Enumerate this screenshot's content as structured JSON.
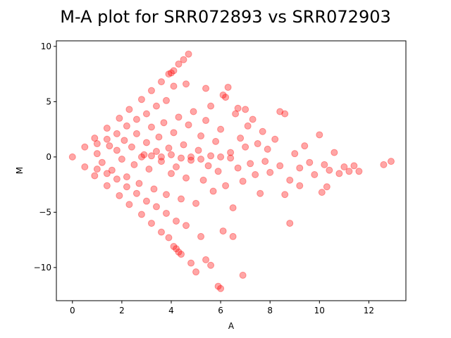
{
  "chart_data": {
    "type": "scatter",
    "title": "M-A plot for SRR072893 vs SRR072903",
    "xlabel": "A",
    "ylabel": "M",
    "xlim": [
      -0.65,
      13.5
    ],
    "ylim": [
      -13.0,
      10.5
    ],
    "xticks": [
      0,
      2,
      4,
      6,
      8,
      10,
      12
    ],
    "yticks": [
      -10,
      -5,
      0,
      5,
      10
    ],
    "grid": false,
    "legend": "none",
    "marker_color": "#ff0000",
    "marker_alpha": 0.35,
    "description_note": "",
    "points": [
      [
        0.0,
        0.0
      ],
      [
        0.5,
        0.9
      ],
      [
        0.9,
        1.7
      ],
      [
        1.4,
        2.6
      ],
      [
        1.9,
        3.5
      ],
      [
        2.3,
        4.3
      ],
      [
        2.8,
        5.2
      ],
      [
        3.2,
        6.0
      ],
      [
        3.6,
        6.8
      ],
      [
        3.9,
        7.5
      ],
      [
        4.1,
        7.8
      ],
      [
        0.5,
        -0.9
      ],
      [
        0.9,
        -1.7
      ],
      [
        1.4,
        -2.6
      ],
      [
        1.9,
        -3.5
      ],
      [
        2.3,
        -4.3
      ],
      [
        2.8,
        -5.2
      ],
      [
        3.2,
        -6.0
      ],
      [
        3.6,
        -6.8
      ],
      [
        3.9,
        -7.3
      ],
      [
        4.1,
        -8.1
      ],
      [
        4.3,
        -8.6
      ],
      [
        4.5,
        8.8
      ],
      [
        4.7,
        9.3
      ],
      [
        4.3,
        8.4
      ],
      [
        4.0,
        7.6
      ],
      [
        4.2,
        -8.3
      ],
      [
        4.4,
        -8.8
      ],
      [
        1.0,
        0.3
      ],
      [
        1.2,
        -0.5
      ],
      [
        1.5,
        1.0
      ],
      [
        1.6,
        -1.2
      ],
      [
        1.8,
        0.6
      ],
      [
        2.0,
        -0.2
      ],
      [
        2.1,
        1.5
      ],
      [
        2.2,
        -1.8
      ],
      [
        2.4,
        0.9
      ],
      [
        2.5,
        -0.7
      ],
      [
        2.6,
        2.1
      ],
      [
        2.7,
        -2.4
      ],
      [
        2.9,
        0.2
      ],
      [
        3.0,
        1.3
      ],
      [
        3.1,
        -1.1
      ],
      [
        3.2,
        2.7
      ],
      [
        3.3,
        -2.9
      ],
      [
        3.4,
        0.5
      ],
      [
        3.5,
        1.8
      ],
      [
        3.6,
        -0.4
      ],
      [
        3.7,
        3.1
      ],
      [
        3.8,
        -3.4
      ],
      [
        3.9,
        0.8
      ],
      [
        4.0,
        -1.5
      ],
      [
        4.1,
        2.2
      ],
      [
        4.2,
        -0.9
      ],
      [
        4.3,
        3.6
      ],
      [
        4.4,
        -3.8
      ],
      [
        4.5,
        1.1
      ],
      [
        4.6,
        -1.9
      ],
      [
        4.7,
        2.9
      ],
      [
        4.8,
        -0.3
      ],
      [
        4.9,
        4.1
      ],
      [
        5.0,
        -4.2
      ],
      [
        5.1,
        0.6
      ],
      [
        5.2,
        1.9
      ],
      [
        5.3,
        -2.1
      ],
      [
        5.4,
        3.3
      ],
      [
        5.5,
        -0.8
      ],
      [
        5.6,
        4.6
      ],
      [
        5.7,
        -3.1
      ],
      [
        5.8,
        1.4
      ],
      [
        5.9,
        -1.3
      ],
      [
        6.0,
        2.5
      ],
      [
        6.1,
        5.6
      ],
      [
        6.2,
        -2.6
      ],
      [
        6.3,
        6.3
      ],
      [
        6.4,
        0.4
      ],
      [
        6.5,
        -4.6
      ],
      [
        6.6,
        3.9
      ],
      [
        6.7,
        -1.0
      ],
      [
        6.8,
        1.7
      ],
      [
        6.9,
        -2.2
      ],
      [
        7.0,
        0.9
      ],
      [
        7.1,
        2.8
      ],
      [
        7.2,
        -0.6
      ],
      [
        7.3,
        3.4
      ],
      [
        7.4,
        -1.6
      ],
      [
        7.5,
        1.2
      ],
      [
        7.6,
        -3.3
      ],
      [
        7.7,
        2.3
      ],
      [
        7.8,
        -0.4
      ],
      [
        7.9,
        0.7
      ],
      [
        8.0,
        -1.4
      ],
      [
        8.2,
        1.6
      ],
      [
        8.4,
        -0.8
      ],
      [
        8.6,
        3.9
      ],
      [
        8.8,
        -2.1
      ],
      [
        9.0,
        0.3
      ],
      [
        9.2,
        -1.0
      ],
      [
        9.4,
        1.0
      ],
      [
        9.6,
        -0.5
      ],
      [
        9.8,
        -1.6
      ],
      [
        10.0,
        2.0
      ],
      [
        10.2,
        -0.7
      ],
      [
        10.4,
        -1.2
      ],
      [
        10.6,
        0.4
      ],
      [
        10.8,
        -1.5
      ],
      [
        11.0,
        -0.9
      ],
      [
        11.2,
        -1.3
      ],
      [
        11.4,
        -0.8
      ],
      [
        11.6,
        -1.3
      ],
      [
        12.6,
        -0.7
      ],
      [
        12.9,
        -0.4
      ],
      [
        5.2,
        -7.2
      ],
      [
        5.4,
        -9.3
      ],
      [
        5.6,
        -9.8
      ],
      [
        5.9,
        -11.7
      ],
      [
        6.0,
        -11.9
      ],
      [
        6.1,
        -6.7
      ],
      [
        6.5,
        -7.2
      ],
      [
        6.9,
        -10.7
      ],
      [
        4.8,
        -9.6
      ],
      [
        5.0,
        -10.4
      ],
      [
        8.8,
        -6.0
      ],
      [
        9.2,
        -2.6
      ],
      [
        10.3,
        -2.7
      ],
      [
        10.1,
        -3.2
      ],
      [
        8.6,
        -3.4
      ],
      [
        8.4,
        4.1
      ],
      [
        6.7,
        4.4
      ],
      [
        7.0,
        4.3
      ],
      [
        5.4,
        6.2
      ],
      [
        6.2,
        5.4
      ],
      [
        4.6,
        6.6
      ],
      [
        4.1,
        6.4
      ],
      [
        3.8,
        5.1
      ],
      [
        3.4,
        4.6
      ],
      [
        3.0,
        3.9
      ],
      [
        2.6,
        3.4
      ],
      [
        2.2,
        2.8
      ],
      [
        1.8,
        2.1
      ],
      [
        1.4,
        1.6
      ],
      [
        1.0,
        1.2
      ],
      [
        3.0,
        -4.0
      ],
      [
        2.6,
        -3.3
      ],
      [
        2.2,
        -2.7
      ],
      [
        1.8,
        -2.0
      ],
      [
        1.4,
        -1.5
      ],
      [
        1.0,
        -1.1
      ],
      [
        3.4,
        -4.5
      ],
      [
        3.8,
        -5.1
      ],
      [
        4.2,
        -5.8
      ],
      [
        4.6,
        -6.2
      ],
      [
        2.8,
        0.0
      ],
      [
        3.2,
        0.1
      ],
      [
        3.6,
        0.0
      ],
      [
        4.0,
        0.2
      ],
      [
        4.4,
        -0.1
      ],
      [
        4.8,
        0.0
      ],
      [
        5.2,
        -0.2
      ],
      [
        5.6,
        0.1
      ],
      [
        6.0,
        0.0
      ],
      [
        6.4,
        -0.1
      ]
    ]
  }
}
